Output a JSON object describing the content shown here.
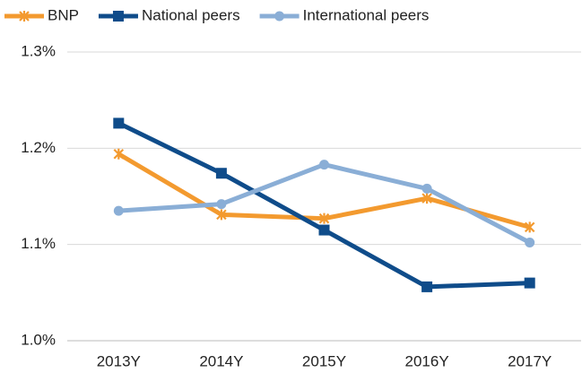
{
  "chart_data": {
    "type": "line",
    "categories": [
      "2013Y",
      "2014Y",
      "2015Y",
      "2016Y",
      "2017Y"
    ],
    "series": [
      {
        "name": "BNP",
        "color": "#f39a2f",
        "marker": "x",
        "values": [
          1.194,
          1.131,
          1.127,
          1.148,
          1.118
        ]
      },
      {
        "name": "National peers",
        "color": "#0f4c8a",
        "marker": "square",
        "values": [
          1.226,
          1.174,
          1.115,
          1.056,
          1.06
        ]
      },
      {
        "name": "International peers",
        "color": "#8aaed6",
        "marker": "circle",
        "values": [
          1.135,
          1.142,
          1.183,
          1.158,
          1.102
        ]
      }
    ],
    "ylim": [
      1.0,
      1.3
    ],
    "yticks": [
      {
        "value": 1.0,
        "label": "1.0%"
      },
      {
        "value": 1.1,
        "label": "1.1%"
      },
      {
        "value": 1.2,
        "label": "1.2%"
      },
      {
        "value": 1.3,
        "label": "1.3%"
      }
    ],
    "grid": true,
    "legend": "top"
  }
}
